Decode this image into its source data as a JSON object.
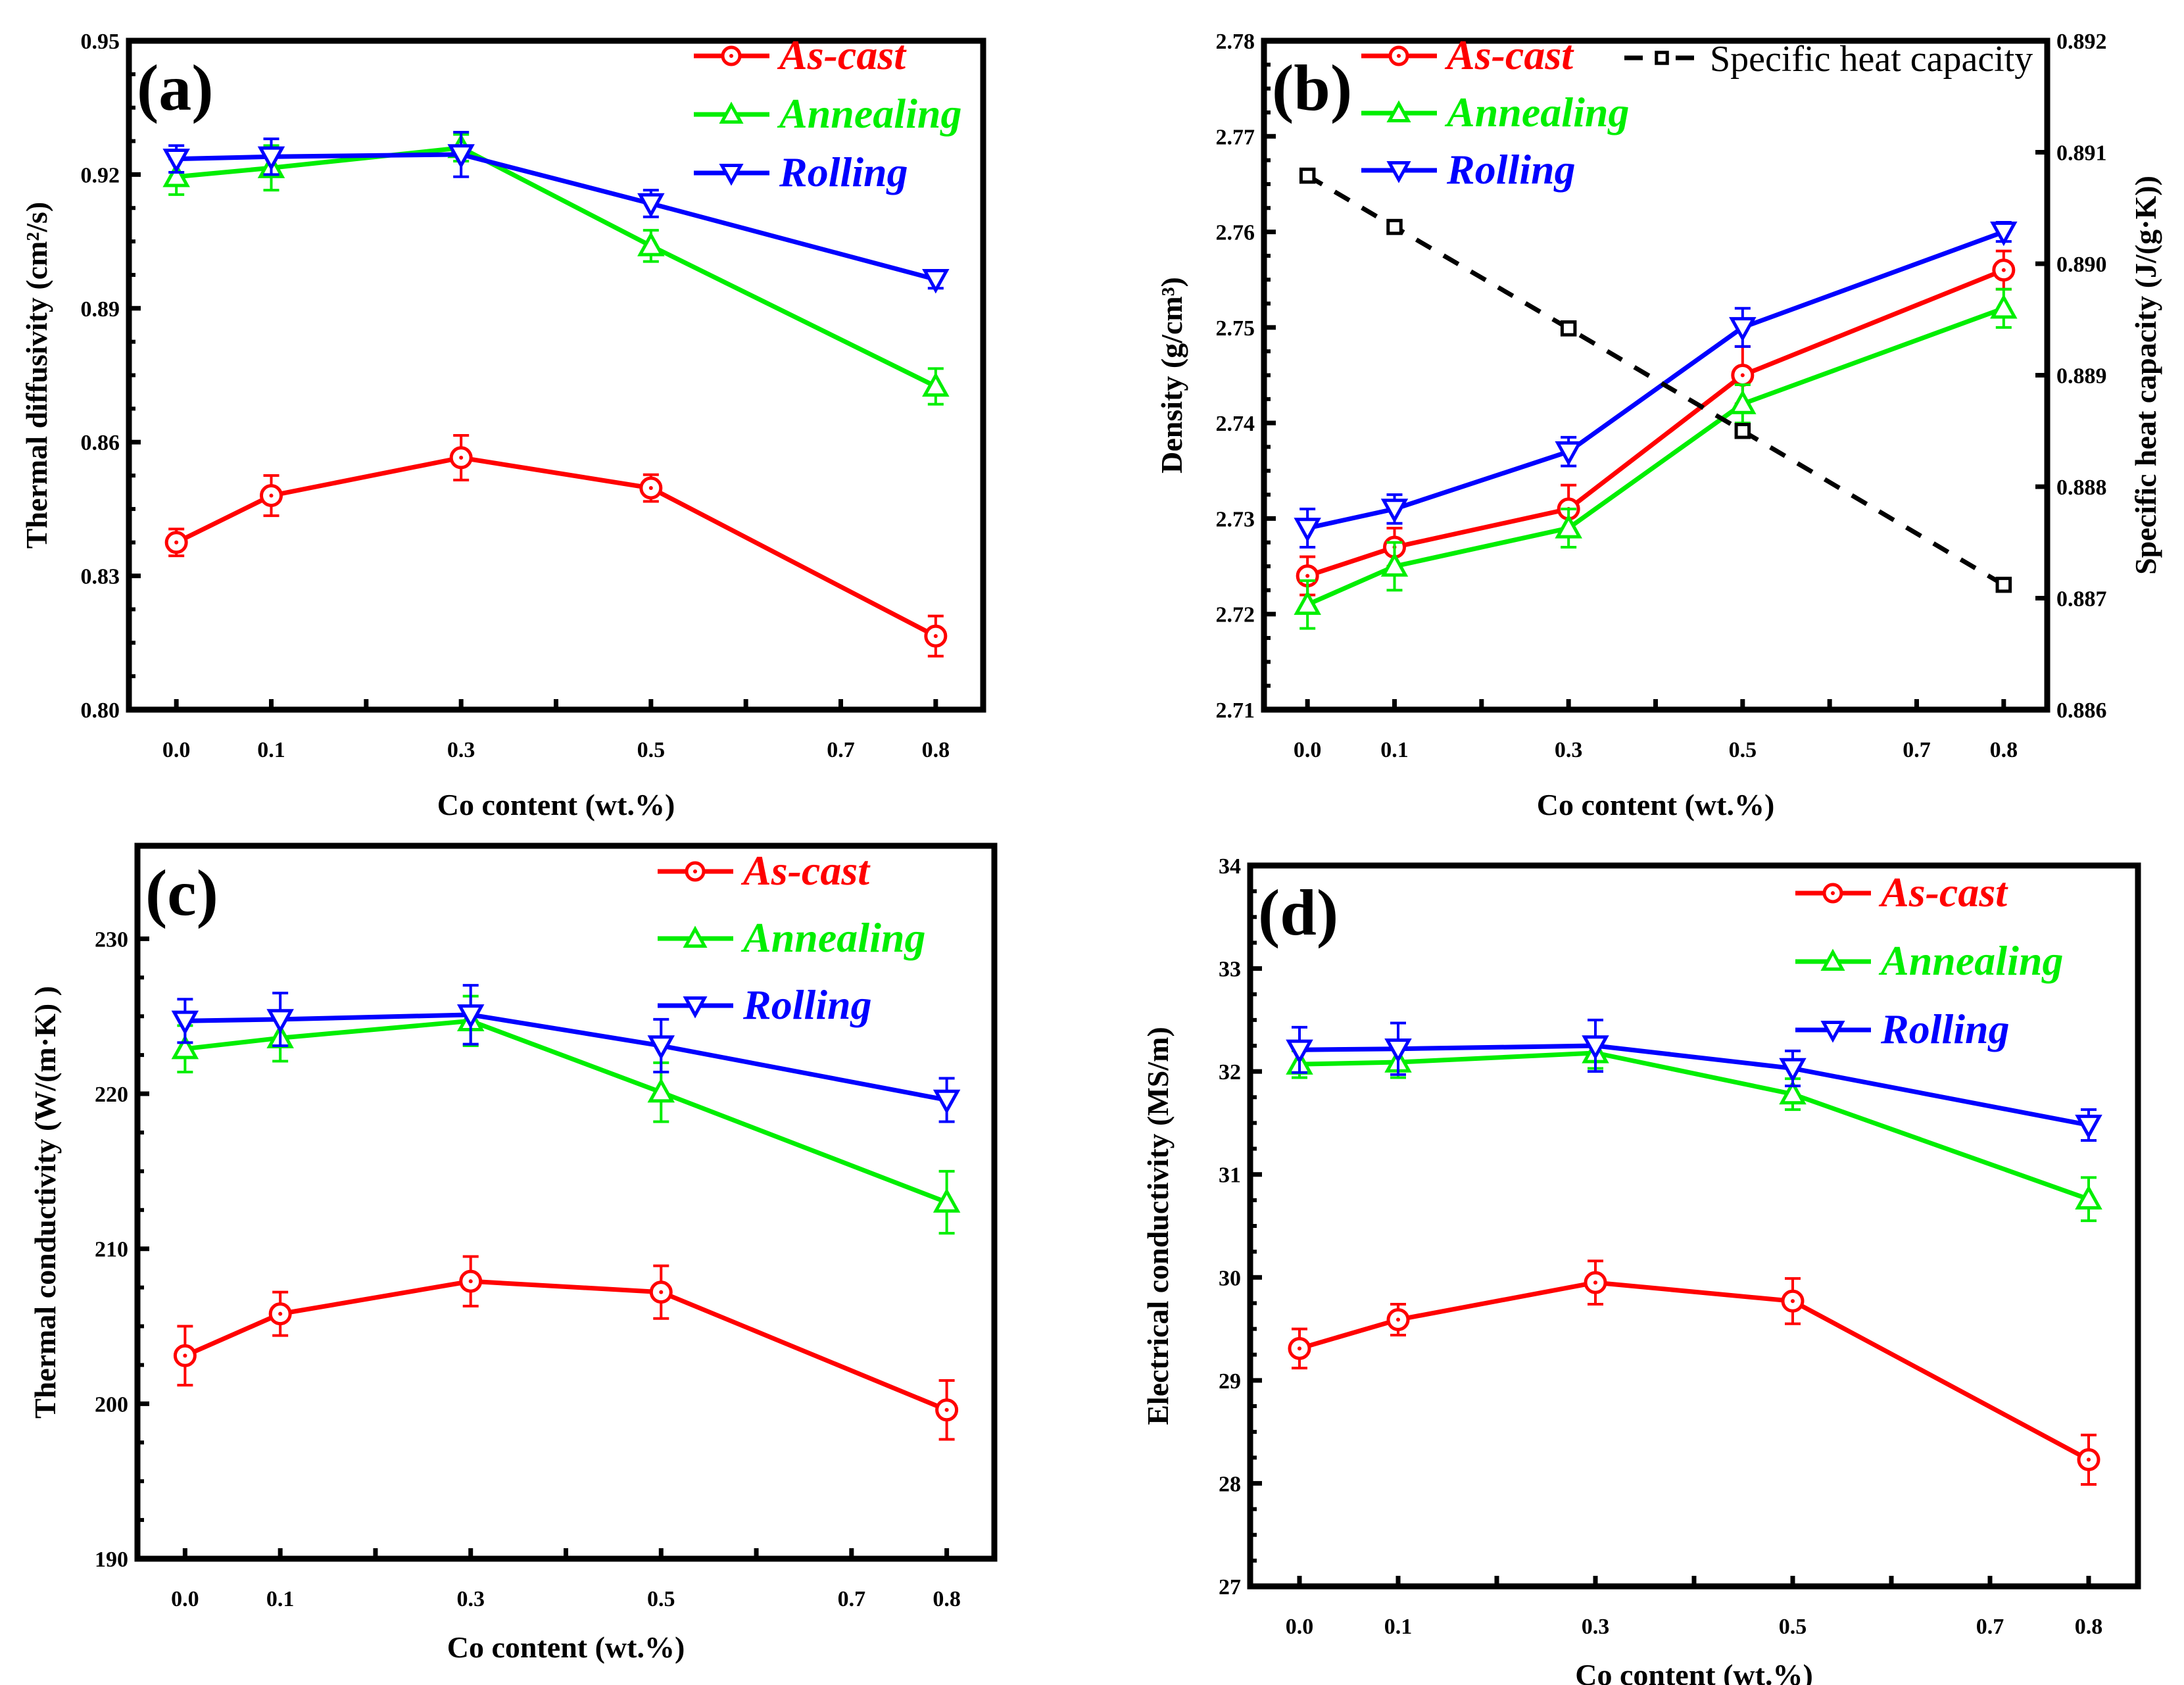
{
  "colors": {
    "As-cast": "#ff0000",
    "Annealing": "#00ee00",
    "Rolling": "#0000ff",
    "Specific heat capacity": "#000000"
  },
  "chart_data": [
    {
      "type": "line",
      "panel": "(a)",
      "xlabel": "Co content (wt.%)",
      "ylabel": "Thermal diffusivity (cm²/s)",
      "x": [
        0.0,
        0.1,
        0.3,
        0.5,
        0.8
      ],
      "xticks": [
        "0.0",
        "0.1",
        "0.3",
        "0.5",
        "0.7",
        "0.8"
      ],
      "xlim": [
        -0.05,
        0.85
      ],
      "ylim": [
        0.8,
        0.95
      ],
      "yticks": [
        "0.80",
        "0.83",
        "0.86",
        "0.89",
        "0.92",
        "0.95"
      ],
      "legend": "top-right",
      "series": [
        {
          "name": "As-cast",
          "marker": "circle",
          "values": [
            0.8375,
            0.848,
            0.8565,
            0.8497,
            0.8165
          ],
          "errors": [
            0.003,
            0.0045,
            0.005,
            0.003,
            0.0045
          ]
        },
        {
          "name": "Annealing",
          "marker": "triangle-up",
          "values": [
            0.9195,
            0.9215,
            0.926,
            0.904,
            0.8725
          ],
          "errors": [
            0.004,
            0.005,
            0.003,
            0.0035,
            0.004
          ]
        },
        {
          "name": "Rolling",
          "marker": "triangle-down",
          "values": [
            0.9235,
            0.924,
            0.9245,
            0.9135,
            0.8965
          ],
          "errors": [
            0.003,
            0.004,
            0.005,
            0.003,
            0.002
          ]
        }
      ]
    },
    {
      "type": "line",
      "panel": "(b)",
      "xlabel": "Co content (wt.%)",
      "ylabel": "Density (g/cm³)",
      "y2label": "Specific heat capacity (J/(g·K))",
      "x": [
        0.0,
        0.1,
        0.3,
        0.5,
        0.8
      ],
      "xticks": [
        "0.0",
        "0.1",
        "0.3",
        "0.5",
        "0.7",
        "0.8"
      ],
      "xlim": [
        -0.05,
        0.85
      ],
      "ylim": [
        2.71,
        2.78
      ],
      "yticks": [
        "2.71",
        "2.72",
        "2.73",
        "2.74",
        "2.75",
        "2.76",
        "2.77",
        "2.78"
      ],
      "y2lim": [
        0.886,
        0.892
      ],
      "y2ticks": [
        "0.886",
        "0.887",
        "0.888",
        "0.889",
        "0.890",
        "0.891",
        "0.892"
      ],
      "legend": "top",
      "series": [
        {
          "name": "As-cast",
          "marker": "circle",
          "values": [
            2.724,
            2.727,
            2.731,
            2.745,
            2.756
          ],
          "errors": [
            0.002,
            0.002,
            0.0025,
            0.003,
            0.002
          ]
        },
        {
          "name": "Annealing",
          "marker": "triangle-up",
          "values": [
            2.721,
            2.725,
            2.729,
            2.742,
            2.752
          ],
          "errors": [
            0.0025,
            0.0025,
            0.002,
            0.002,
            0.002
          ]
        },
        {
          "name": "Rolling",
          "marker": "triangle-down",
          "values": [
            2.729,
            2.731,
            2.737,
            2.75,
            2.76
          ],
          "errors": [
            0.002,
            0.0015,
            0.0015,
            0.002,
            0.001
          ]
        },
        {
          "name": "Specific heat capacity",
          "marker": "square",
          "axis": "right",
          "dashed": true,
          "values": [
            0.89079,
            0.89033,
            0.88942,
            0.8885,
            0.88712
          ]
        }
      ]
    },
    {
      "type": "line",
      "panel": "(c)",
      "xlabel": "Co content (wt.%)",
      "ylabel": "Thermal conductivity (W/(m·K)  )",
      "x": [
        0.0,
        0.1,
        0.3,
        0.5,
        0.8
      ],
      "xticks": [
        "0.0",
        "0.1",
        "0.3",
        "0.5",
        "0.7",
        "0.8"
      ],
      "xlim": [
        -0.05,
        0.85
      ],
      "ylim": [
        190,
        236
      ],
      "yticks": [
        "190",
        "200",
        "210",
        "220",
        "230"
      ],
      "legend": "top-right",
      "series": [
        {
          "name": "As-cast",
          "marker": "circle",
          "values": [
            203.1,
            205.8,
            207.9,
            207.2,
            199.6
          ],
          "errors": [
            1.9,
            1.4,
            1.6,
            1.7,
            1.9
          ]
        },
        {
          "name": "Annealing",
          "marker": "triangle-up",
          "values": [
            222.9,
            223.6,
            224.7,
            220.1,
            213.0
          ],
          "errors": [
            1.5,
            1.5,
            1.6,
            1.9,
            2.0
          ]
        },
        {
          "name": "Rolling",
          "marker": "triangle-down",
          "values": [
            224.7,
            224.8,
            225.1,
            223.1,
            219.6
          ],
          "errors": [
            1.4,
            1.7,
            1.9,
            1.7,
            1.4
          ]
        }
      ]
    },
    {
      "type": "line",
      "panel": "(d)",
      "xlabel": "Co content (wt.%)",
      "ylabel": "Electrical conductivity (MS/m)",
      "x": [
        0.0,
        0.1,
        0.3,
        0.5,
        0.8
      ],
      "xticks": [
        "0.0",
        "0.1",
        "0.3",
        "0.5",
        "0.7",
        "0.8"
      ],
      "xlim": [
        -0.05,
        0.85
      ],
      "ylim": [
        27,
        34
      ],
      "yticks": [
        "27",
        "28",
        "29",
        "30",
        "31",
        "32",
        "33",
        "34"
      ],
      "legend": "top-right",
      "series": [
        {
          "name": "As-cast",
          "marker": "circle",
          "values": [
            29.31,
            29.59,
            29.95,
            29.77,
            28.23
          ],
          "errors": [
            0.19,
            0.15,
            0.21,
            0.22,
            0.24
          ]
        },
        {
          "name": "Annealing",
          "marker": "triangle-up",
          "values": [
            32.07,
            32.09,
            32.18,
            31.78,
            30.76
          ],
          "errors": [
            0.13,
            0.15,
            0.15,
            0.15,
            0.21
          ]
        },
        {
          "name": "Rolling",
          "marker": "triangle-down",
          "values": [
            32.21,
            32.22,
            32.25,
            32.03,
            31.48
          ],
          "errors": [
            0.22,
            0.25,
            0.25,
            0.17,
            0.15
          ]
        }
      ]
    }
  ]
}
